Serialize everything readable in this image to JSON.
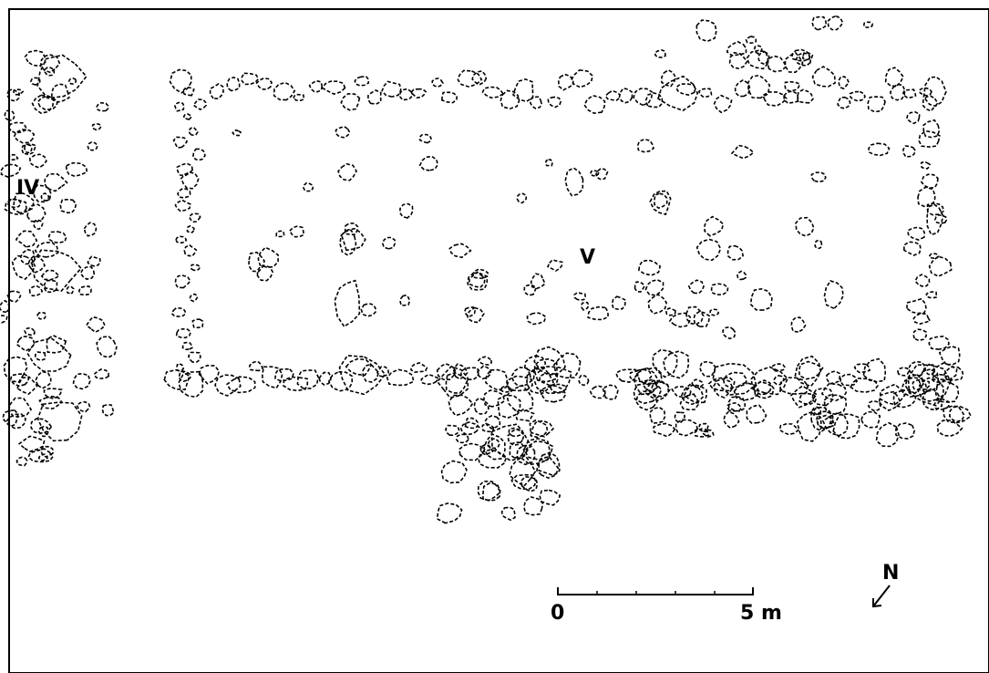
{
  "labels": {
    "structure_left": "IV",
    "structure_main": "V"
  },
  "scale_bar": {
    "start_label": "0",
    "end_label": "5 m"
  },
  "north_arrow": {
    "label": "N"
  },
  "colors": {
    "background": "#ffffff",
    "ink": "#000000"
  }
}
